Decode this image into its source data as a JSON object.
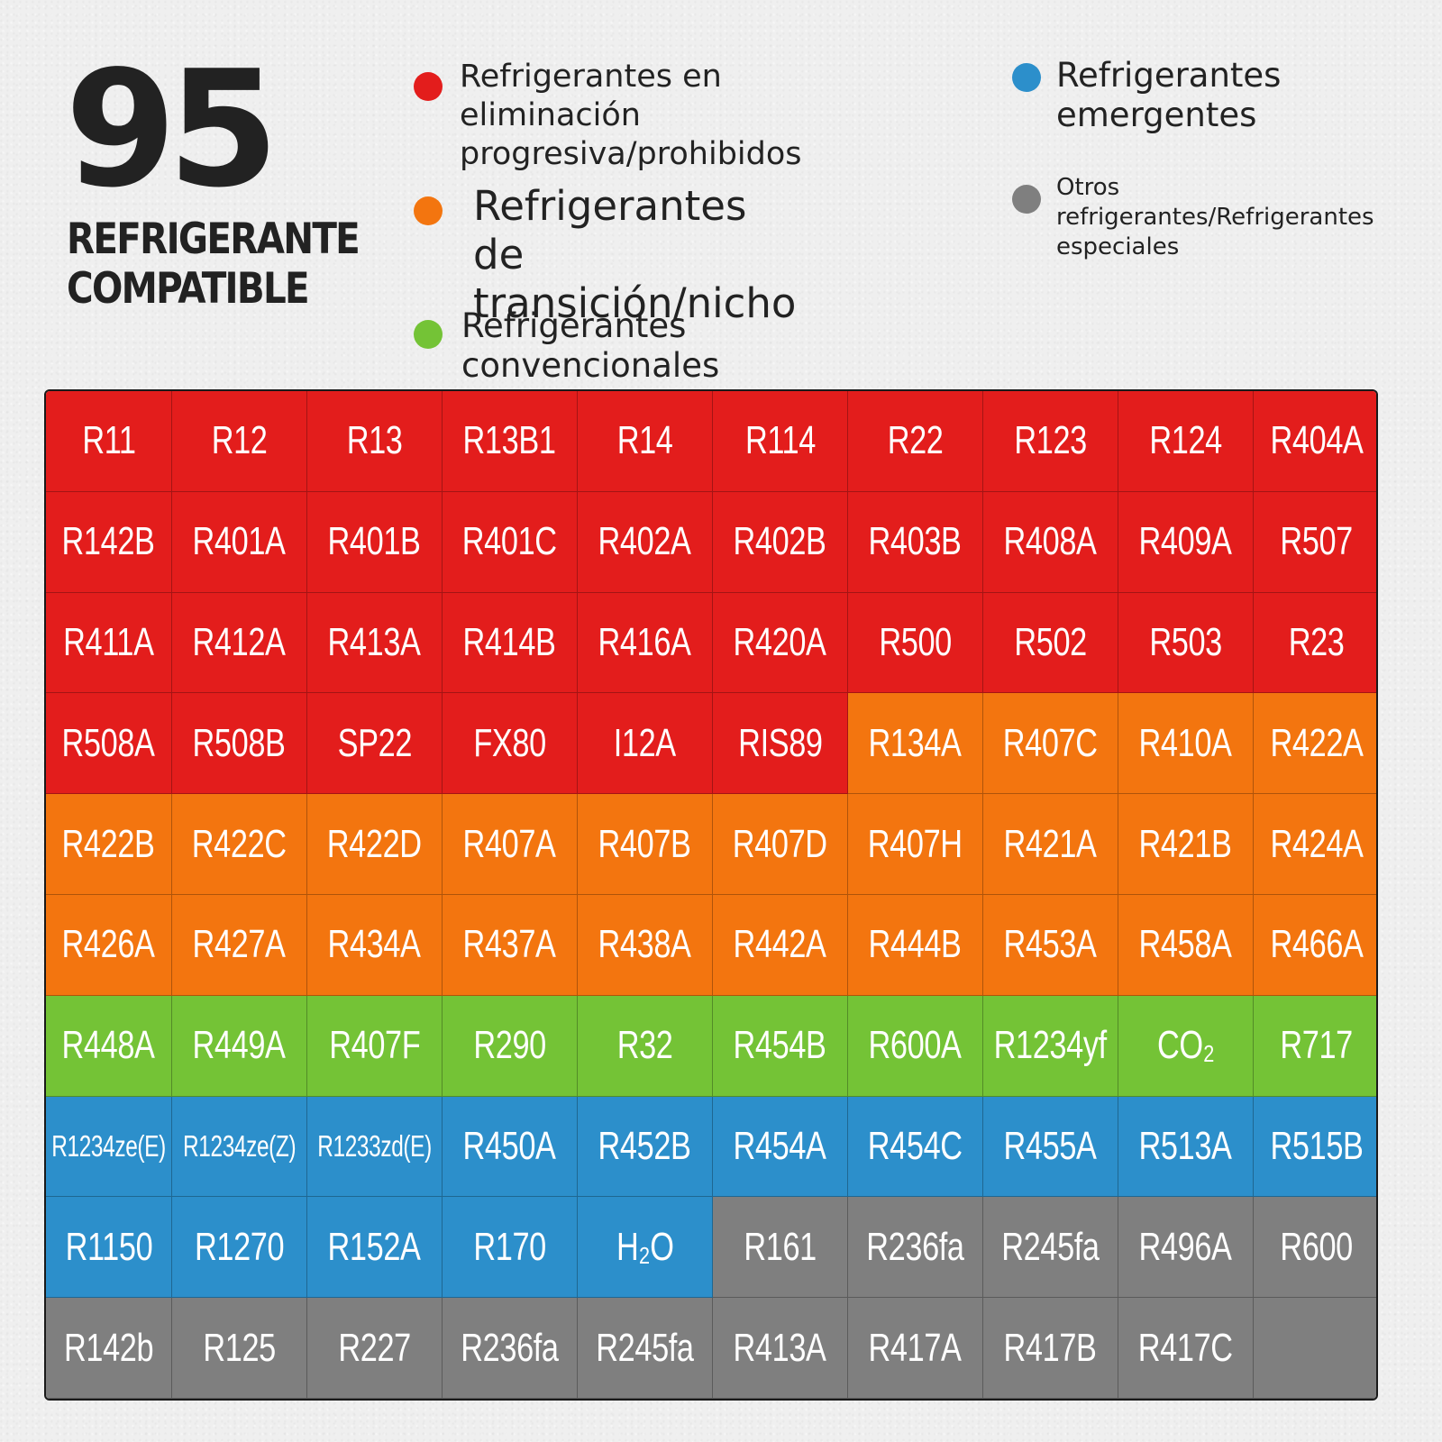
{
  "header": {
    "count": "95",
    "subtitle_line1": "REFRIGERANTE",
    "subtitle_line2": "COMPATIBLE"
  },
  "legend": {
    "phased_out": {
      "label": "Refrigerantes en eliminación\nprogresiva/prohibidos",
      "color": "#e31d1c"
    },
    "transition": {
      "label": "Refrigerantes de\ntransición/nicho",
      "color": "#f3750f"
    },
    "conventional": {
      "label": "Refrigerantes convencionales",
      "color": "#74c336"
    },
    "emerging": {
      "label": "Refrigerantes\nemergentes",
      "color": "#2c8fcb"
    },
    "other": {
      "label": "Otros\nrefrigerantes/Refrigerantes\nespeciales",
      "color": "#7f7f7f"
    }
  },
  "refrigerants": [
    {
      "name": "R11",
      "cat": "red"
    },
    {
      "name": "R12",
      "cat": "red"
    },
    {
      "name": "R13",
      "cat": "red"
    },
    {
      "name": "R13B1",
      "cat": "red"
    },
    {
      "name": "R14",
      "cat": "red"
    },
    {
      "name": "R114",
      "cat": "red"
    },
    {
      "name": "R22",
      "cat": "red"
    },
    {
      "name": "R123",
      "cat": "red"
    },
    {
      "name": "R124",
      "cat": "red"
    },
    {
      "name": "R404A",
      "cat": "red"
    },
    {
      "name": "R142B",
      "cat": "red"
    },
    {
      "name": "R401A",
      "cat": "red"
    },
    {
      "name": "R401B",
      "cat": "red"
    },
    {
      "name": "R401C",
      "cat": "red"
    },
    {
      "name": "R402A",
      "cat": "red"
    },
    {
      "name": "R402B",
      "cat": "red"
    },
    {
      "name": "R403B",
      "cat": "red"
    },
    {
      "name": "R408A",
      "cat": "red"
    },
    {
      "name": "R409A",
      "cat": "red"
    },
    {
      "name": "R507",
      "cat": "red"
    },
    {
      "name": "R411A",
      "cat": "red"
    },
    {
      "name": "R412A",
      "cat": "red"
    },
    {
      "name": "R413A",
      "cat": "red"
    },
    {
      "name": "R414B",
      "cat": "red"
    },
    {
      "name": "R416A",
      "cat": "red"
    },
    {
      "name": "R420A",
      "cat": "red"
    },
    {
      "name": "R500",
      "cat": "red"
    },
    {
      "name": "R502",
      "cat": "red"
    },
    {
      "name": "R503",
      "cat": "red"
    },
    {
      "name": "R23",
      "cat": "red"
    },
    {
      "name": "R508A",
      "cat": "red"
    },
    {
      "name": "R508B",
      "cat": "red"
    },
    {
      "name": "SP22",
      "cat": "red"
    },
    {
      "name": "FX80",
      "cat": "red"
    },
    {
      "name": "I12A",
      "cat": "red"
    },
    {
      "name": "RIS89",
      "cat": "red"
    },
    {
      "name": "R134A",
      "cat": "orange"
    },
    {
      "name": "R407C",
      "cat": "orange"
    },
    {
      "name": "R410A",
      "cat": "orange"
    },
    {
      "name": "R422A",
      "cat": "orange"
    },
    {
      "name": "R422B",
      "cat": "orange"
    },
    {
      "name": "R422C",
      "cat": "orange"
    },
    {
      "name": "R422D",
      "cat": "orange"
    },
    {
      "name": "R407A",
      "cat": "orange"
    },
    {
      "name": "R407B",
      "cat": "orange"
    },
    {
      "name": "R407D",
      "cat": "orange"
    },
    {
      "name": "R407H",
      "cat": "orange"
    },
    {
      "name": "R421A",
      "cat": "orange"
    },
    {
      "name": "R421B",
      "cat": "orange"
    },
    {
      "name": "R424A",
      "cat": "orange"
    },
    {
      "name": "R426A",
      "cat": "orange"
    },
    {
      "name": "R427A",
      "cat": "orange"
    },
    {
      "name": "R434A",
      "cat": "orange"
    },
    {
      "name": "R437A",
      "cat": "orange"
    },
    {
      "name": "R438A",
      "cat": "orange"
    },
    {
      "name": "R442A",
      "cat": "orange"
    },
    {
      "name": "R444B",
      "cat": "orange"
    },
    {
      "name": "R453A",
      "cat": "orange"
    },
    {
      "name": "R458A",
      "cat": "orange"
    },
    {
      "name": "R466A",
      "cat": "orange"
    },
    {
      "name": "R448A",
      "cat": "green"
    },
    {
      "name": "R449A",
      "cat": "green"
    },
    {
      "name": "R407F",
      "cat": "green"
    },
    {
      "name": "R290",
      "cat": "green"
    },
    {
      "name": "R32",
      "cat": "green"
    },
    {
      "name": "R454B",
      "cat": "green"
    },
    {
      "name": "R600A",
      "cat": "green"
    },
    {
      "name": "R1234yf",
      "cat": "green"
    },
    {
      "name": "CO₂",
      "cat": "green"
    },
    {
      "name": "R717",
      "cat": "green"
    },
    {
      "name": "R1234ze(E)",
      "cat": "blue",
      "small": true
    },
    {
      "name": "R1234ze(Z)",
      "cat": "blue",
      "small": true
    },
    {
      "name": "R1233zd(E)",
      "cat": "blue",
      "small": true
    },
    {
      "name": "R450A",
      "cat": "blue"
    },
    {
      "name": "R452B",
      "cat": "blue"
    },
    {
      "name": "R454A",
      "cat": "blue"
    },
    {
      "name": "R454C",
      "cat": "blue"
    },
    {
      "name": "R455A",
      "cat": "blue"
    },
    {
      "name": "R513A",
      "cat": "blue"
    },
    {
      "name": "R515B",
      "cat": "blue"
    },
    {
      "name": "R1150",
      "cat": "blue"
    },
    {
      "name": "R1270",
      "cat": "blue"
    },
    {
      "name": "R152A",
      "cat": "blue"
    },
    {
      "name": "R170",
      "cat": "blue"
    },
    {
      "name": "H₂O",
      "cat": "blue"
    },
    {
      "name": "R161",
      "cat": "gray"
    },
    {
      "name": "R236fa",
      "cat": "gray"
    },
    {
      "name": "R245fa",
      "cat": "gray"
    },
    {
      "name": "R496A",
      "cat": "gray"
    },
    {
      "name": "R600",
      "cat": "gray"
    },
    {
      "name": "R142b",
      "cat": "gray"
    },
    {
      "name": "R125",
      "cat": "gray"
    },
    {
      "name": "R227",
      "cat": "gray"
    },
    {
      "name": "R236fa",
      "cat": "gray"
    },
    {
      "name": "R245fa",
      "cat": "gray"
    },
    {
      "name": "R413A",
      "cat": "gray"
    },
    {
      "name": "R417A",
      "cat": "gray"
    },
    {
      "name": "R417B",
      "cat": "gray"
    },
    {
      "name": "R417C",
      "cat": "gray"
    },
    {
      "name": "",
      "cat": "gray"
    }
  ]
}
